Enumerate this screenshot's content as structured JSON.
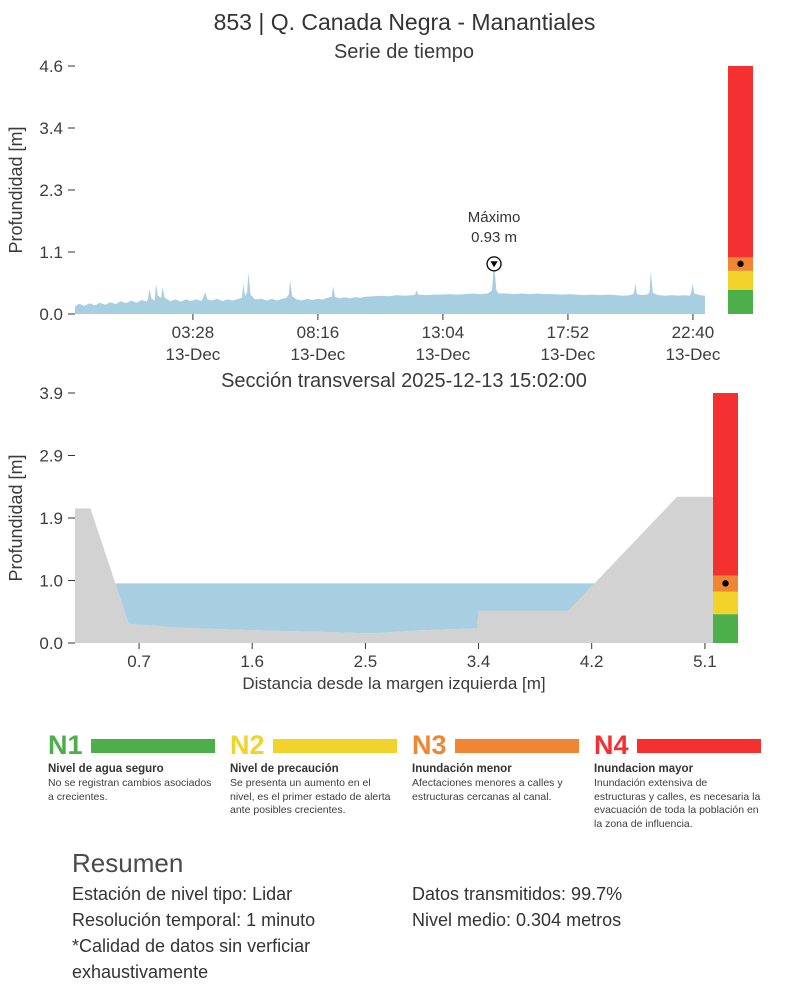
{
  "page_title": "853 | Q. Canada Negra - Manantiales",
  "levels": {
    "colors": {
      "green": "#4daf4a",
      "yellow": "#f2d32b",
      "orange": "#ee8633",
      "red": "#f53030"
    },
    "thresholds": [
      0,
      0.45,
      0.8,
      1.05
    ],
    "current_level": 0.93
  },
  "chart_data": [
    {
      "type": "area",
      "title": "Serie de tiempo",
      "ylabel": "Profundidad [m]",
      "ylim": [
        0,
        4.6
      ],
      "yticks": [
        {
          "value": 0,
          "label": "0.0"
        },
        {
          "value": 1.15,
          "label": "1.1"
        },
        {
          "value": 2.3,
          "label": "2.3"
        },
        {
          "value": 3.45,
          "label": "3.4"
        },
        {
          "value": 4.6,
          "label": "4.6"
        }
      ],
      "xlim_hours": [
        -1.06,
        23.13
      ],
      "xticks": [
        {
          "hour": 3.467,
          "time": "03:28",
          "date": "13-Dec"
        },
        {
          "hour": 8.267,
          "time": "08:16",
          "date": "13-Dec"
        },
        {
          "hour": 13.067,
          "time": "13:04",
          "date": "13-Dec"
        },
        {
          "hour": 17.867,
          "time": "17:52",
          "date": "13-Dec"
        },
        {
          "hour": 22.667,
          "time": "22:40",
          "date": "13-Dec"
        }
      ],
      "series_color": "#a8cee1",
      "annotation": {
        "line1": "Máximo",
        "line2": "0.93 m",
        "x_hour": 15.03,
        "y": 0.93
      },
      "points": [
        [
          -1.06,
          0.14
        ],
        [
          -0.9,
          0.19
        ],
        [
          -0.7,
          0.15
        ],
        [
          -0.5,
          0.2
        ],
        [
          -0.3,
          0.16
        ],
        [
          -0.1,
          0.21
        ],
        [
          0.1,
          0.17
        ],
        [
          0.3,
          0.22
        ],
        [
          0.5,
          0.18
        ],
        [
          0.7,
          0.24
        ],
        [
          0.9,
          0.2
        ],
        [
          1.1,
          0.25
        ],
        [
          1.3,
          0.21
        ],
        [
          1.5,
          0.26
        ],
        [
          1.7,
          0.23
        ],
        [
          1.75,
          0.3
        ],
        [
          1.8,
          0.46
        ],
        [
          1.88,
          0.28
        ],
        [
          2.0,
          0.25
        ],
        [
          2.05,
          0.56
        ],
        [
          2.12,
          0.34
        ],
        [
          2.25,
          0.3
        ],
        [
          2.3,
          0.5
        ],
        [
          2.38,
          0.3
        ],
        [
          2.6,
          0.24
        ],
        [
          2.8,
          0.27
        ],
        [
          3.0,
          0.23
        ],
        [
          3.2,
          0.27
        ],
        [
          3.4,
          0.24
        ],
        [
          3.6,
          0.27
        ],
        [
          3.8,
          0.24
        ],
        [
          3.95,
          0.4
        ],
        [
          4.02,
          0.27
        ],
        [
          4.2,
          0.25
        ],
        [
          4.4,
          0.28
        ],
        [
          4.6,
          0.24
        ],
        [
          4.8,
          0.27
        ],
        [
          5.0,
          0.25
        ],
        [
          5.2,
          0.28
        ],
        [
          5.35,
          0.3
        ],
        [
          5.4,
          0.56
        ],
        [
          5.47,
          0.33
        ],
        [
          5.55,
          0.4
        ],
        [
          5.6,
          0.76
        ],
        [
          5.68,
          0.36
        ],
        [
          5.85,
          0.27
        ],
        [
          6.1,
          0.28
        ],
        [
          6.3,
          0.25
        ],
        [
          6.5,
          0.28
        ],
        [
          6.7,
          0.25
        ],
        [
          6.9,
          0.28
        ],
        [
          7.05,
          0.3
        ],
        [
          7.15,
          0.36
        ],
        [
          7.2,
          0.62
        ],
        [
          7.28,
          0.33
        ],
        [
          7.45,
          0.27
        ],
        [
          7.65,
          0.25
        ],
        [
          7.85,
          0.28
        ],
        [
          8.05,
          0.26
        ],
        [
          8.25,
          0.28
        ],
        [
          8.45,
          0.27
        ],
        [
          8.65,
          0.3
        ],
        [
          8.8,
          0.32
        ],
        [
          8.85,
          0.52
        ],
        [
          8.92,
          0.32
        ],
        [
          9.1,
          0.29
        ],
        [
          9.3,
          0.31
        ],
        [
          9.5,
          0.29
        ],
        [
          9.7,
          0.31
        ],
        [
          9.9,
          0.3
        ],
        [
          10.1,
          0.32
        ],
        [
          10.4,
          0.33
        ],
        [
          10.7,
          0.34
        ],
        [
          11.0,
          0.33
        ],
        [
          11.3,
          0.35
        ],
        [
          11.6,
          0.34
        ],
        [
          11.9,
          0.35
        ],
        [
          12.0,
          0.36
        ],
        [
          12.05,
          0.44
        ],
        [
          12.12,
          0.36
        ],
        [
          12.4,
          0.35
        ],
        [
          12.7,
          0.36
        ],
        [
          13.0,
          0.36
        ],
        [
          13.3,
          0.37
        ],
        [
          13.6,
          0.36
        ],
        [
          13.9,
          0.37
        ],
        [
          14.2,
          0.38
        ],
        [
          14.5,
          0.37
        ],
        [
          14.8,
          0.38
        ],
        [
          14.95,
          0.44
        ],
        [
          15.03,
          0.93
        ],
        [
          15.12,
          0.44
        ],
        [
          15.2,
          0.38
        ],
        [
          15.5,
          0.38
        ],
        [
          15.8,
          0.37
        ],
        [
          16.1,
          0.38
        ],
        [
          16.4,
          0.37
        ],
        [
          16.7,
          0.38
        ],
        [
          17.0,
          0.37
        ],
        [
          17.3,
          0.37
        ],
        [
          17.6,
          0.36
        ],
        [
          17.9,
          0.37
        ],
        [
          18.2,
          0.36
        ],
        [
          18.5,
          0.35
        ],
        [
          18.8,
          0.36
        ],
        [
          19.1,
          0.35
        ],
        [
          19.4,
          0.36
        ],
        [
          19.7,
          0.35
        ],
        [
          20.0,
          0.34
        ],
        [
          20.25,
          0.35
        ],
        [
          20.4,
          0.38
        ],
        [
          20.45,
          0.56
        ],
        [
          20.52,
          0.37
        ],
        [
          20.7,
          0.35
        ],
        [
          20.9,
          0.36
        ],
        [
          21.0,
          0.4
        ],
        [
          21.05,
          0.78
        ],
        [
          21.13,
          0.39
        ],
        [
          21.35,
          0.35
        ],
        [
          21.6,
          0.34
        ],
        [
          21.85,
          0.35
        ],
        [
          22.1,
          0.34
        ],
        [
          22.35,
          0.35
        ],
        [
          22.55,
          0.34
        ],
        [
          22.6,
          0.4
        ],
        [
          22.65,
          0.56
        ],
        [
          22.72,
          0.38
        ],
        [
          22.95,
          0.35
        ],
        [
          23.13,
          0.34
        ]
      ]
    },
    {
      "type": "area",
      "title": "Sección transversal 2025-12-13 15:02:00",
      "xlabel": "Distancia desde la margen izquierda [m]",
      "ylabel": "Profundidad [m]",
      "ylim": [
        0,
        3.9
      ],
      "yticks": [
        {
          "value": 0,
          "label": "0.0"
        },
        {
          "value": 0.975,
          "label": "1.0"
        },
        {
          "value": 1.95,
          "label": "1.9"
        },
        {
          "value": 2.925,
          "label": "2.9"
        },
        {
          "value": 3.9,
          "label": "3.9"
        }
      ],
      "xlim": [
        0.2,
        5.18
      ],
      "xticks": [
        {
          "value": 0.7,
          "label": "0.7"
        },
        {
          "value": 1.583,
          "label": "1.6"
        },
        {
          "value": 2.467,
          "label": "2.5"
        },
        {
          "value": 3.35,
          "label": "3.4"
        },
        {
          "value": 4.233,
          "label": "4.2"
        },
        {
          "value": 5.117,
          "label": "5.1"
        }
      ],
      "terrain_color": "#d2d2d2",
      "water_color": "#a8cee1",
      "water_level": 0.93,
      "terrain": [
        [
          0.2,
          2.1
        ],
        [
          0.32,
          2.1
        ],
        [
          0.62,
          0.3
        ],
        [
          1.0,
          0.24
        ],
        [
          1.6,
          0.2
        ],
        [
          2.2,
          0.17
        ],
        [
          2.5,
          0.15
        ],
        [
          2.9,
          0.2
        ],
        [
          3.34,
          0.23
        ],
        [
          3.35,
          0.5
        ],
        [
          4.05,
          0.5
        ],
        [
          4.9,
          2.28
        ],
        [
          5.18,
          2.28
        ]
      ],
      "water": [
        [
          0.515,
          0.93
        ],
        [
          0.62,
          0.3
        ],
        [
          1.0,
          0.24
        ],
        [
          1.6,
          0.2
        ],
        [
          2.2,
          0.17
        ],
        [
          2.5,
          0.15
        ],
        [
          2.9,
          0.2
        ],
        [
          3.34,
          0.23
        ],
        [
          3.35,
          0.5
        ],
        [
          4.05,
          0.5
        ],
        [
          4.255,
          0.93
        ]
      ]
    }
  ],
  "legend": {
    "items": [
      {
        "code": "N1",
        "color": "#4daf4a",
        "title": "Nivel de agua seguro",
        "desc": "No se registran cambios asociados a crecientes."
      },
      {
        "code": "N2",
        "color": "#f2d32b",
        "title": "Nivel de precaución",
        "desc": "Se presenta un aumento en el nivel, es el primer estado de alerta ante posibles crecientes."
      },
      {
        "code": "N3",
        "color": "#ee8633",
        "title": "Inundación menor",
        "desc": "Afectaciones menores a calles y estructuras cercanas al canal."
      },
      {
        "code": "N4",
        "color": "#f53030",
        "title": "Inundacion mayor",
        "desc": "Inundación extensiva de estructuras y calles, es necesaria la evacuación de toda la población en la zona de influencia."
      }
    ]
  },
  "resumen": {
    "title": "Resumen",
    "left_lines": [
      "Estación de nivel tipo: Lidar",
      "Resolución temporal: 1 minuto",
      "*Calidad de datos sin verficiar exhaustivamente"
    ],
    "right_lines": [
      "Datos transmitidos: 99.7%",
      "Nivel medio: 0.304 metros"
    ]
  }
}
